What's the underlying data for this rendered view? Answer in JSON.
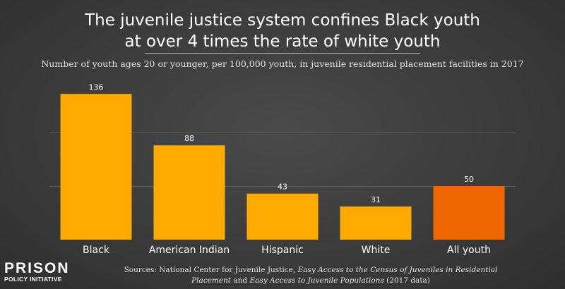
{
  "title_line1": "The juvenile justice system confines Black youth",
  "title_line2": "at over 4 times the rate of white youth",
  "subtitle": "Number of youth ages 20 or younger, per 100,000 youth, in juvenile residential placement facilities in 2017",
  "logo": {
    "top": "PRISON",
    "bottom": "POLICY INITIATIVE"
  },
  "source": {
    "prefix": "Sources: National Center for Juvenile Justice, ",
    "italic1": "Easy Access to the Census of Juveniles in Residential Placement",
    "middle": " and ",
    "italic2": "Easy Access to Juvenile Populations",
    "suffix": " (2017 data)"
  },
  "colors": {
    "bar": "#ffaa00",
    "highlight": "#ef6700",
    "grid": "#5c5c5c"
  },
  "chart_data": {
    "type": "bar",
    "title": "The juvenile justice system confines Black youth at over 4 times the rate of white youth",
    "subtitle": "Number of youth ages 20 or younger, per 100,000 youth, in juvenile residential placement facilities in 2017",
    "categories": [
      "Black",
      "American Indian",
      "Hispanic",
      "White",
      "All youth"
    ],
    "values": [
      136,
      88,
      43,
      31,
      50
    ],
    "highlight_index": 4,
    "ylim": [
      0,
      150
    ],
    "gridlines": [
      50,
      100,
      150
    ],
    "grid": true,
    "legend": "none"
  }
}
